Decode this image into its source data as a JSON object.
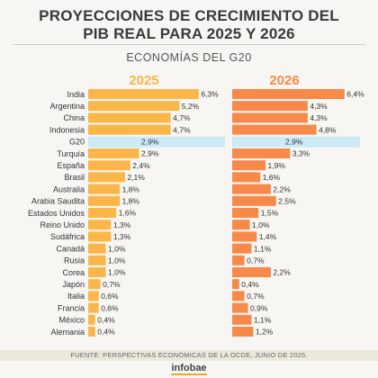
{
  "title_line1": "PROYECCIONES DE CRECIMIENTO DEL",
  "title_line2": "PIB REAL PARA 2025 Y 2026",
  "subtitle": "ECONOMÍAS DEL G20",
  "source": "FUENTE: PERSPECTIVAS ECONÓMICAS DE LA OCDE, JUNIO DE 2025.",
  "logo": "infobae",
  "chart_data": {
    "type": "bar",
    "orientation": "horizontal",
    "categories": [
      "India",
      "Argentina",
      "China",
      "Indonesia",
      "G20",
      "Turquía",
      "España",
      "Brasil",
      "Australia",
      "Arabia Saudita",
      "Estados Unidos",
      "Reino Unido",
      "Sudáfrica",
      "Canadá",
      "Rusia",
      "Corea",
      "Japón",
      "Italia",
      "Francia",
      "México",
      "Alemania"
    ],
    "highlight_category": "G20",
    "series": [
      {
        "name": "2025",
        "color": "#fbb64a",
        "values": [
          6.3,
          5.2,
          4.7,
          4.7,
          2.9,
          2.9,
          2.4,
          2.1,
          1.8,
          1.8,
          1.6,
          1.3,
          1.3,
          1.0,
          1.0,
          1.0,
          0.7,
          0.6,
          0.6,
          0.4,
          0.4
        ],
        "labels": [
          "6,3%",
          "5,2%",
          "4,7%",
          "4,7%",
          "2,9%",
          "2,9%",
          "2,4%",
          "2,1%",
          "1,8%",
          "1,8%",
          "1,6%",
          "1,3%",
          "1,3%",
          "1,0%",
          "1,0%",
          "1,0%",
          "0,7%",
          "0,6%",
          "0,6%",
          "0,4%",
          "0,4%"
        ]
      },
      {
        "name": "2026",
        "color": "#f7894a",
        "values": [
          6.4,
          4.3,
          4.3,
          4.8,
          2.9,
          3.3,
          1.9,
          1.6,
          2.2,
          2.5,
          1.5,
          1.0,
          1.4,
          1.1,
          0.7,
          2.2,
          0.4,
          0.7,
          0.9,
          1.1,
          1.2
        ],
        "labels": [
          "6,4%",
          "4,3%",
          "4,3%",
          "4,8%",
          "2,9%",
          "3,3%",
          "1,9%",
          "1,6%",
          "2,2%",
          "2,5%",
          "1,5%",
          "1,0%",
          "1,4%",
          "1,1%",
          "0,7%",
          "2,2%",
          "0,4%",
          "0,7%",
          "0,9%",
          "1,1%",
          "1,2%"
        ]
      }
    ],
    "highlight_color": "#cdeaf7",
    "grid": false,
    "legend": "top"
  }
}
